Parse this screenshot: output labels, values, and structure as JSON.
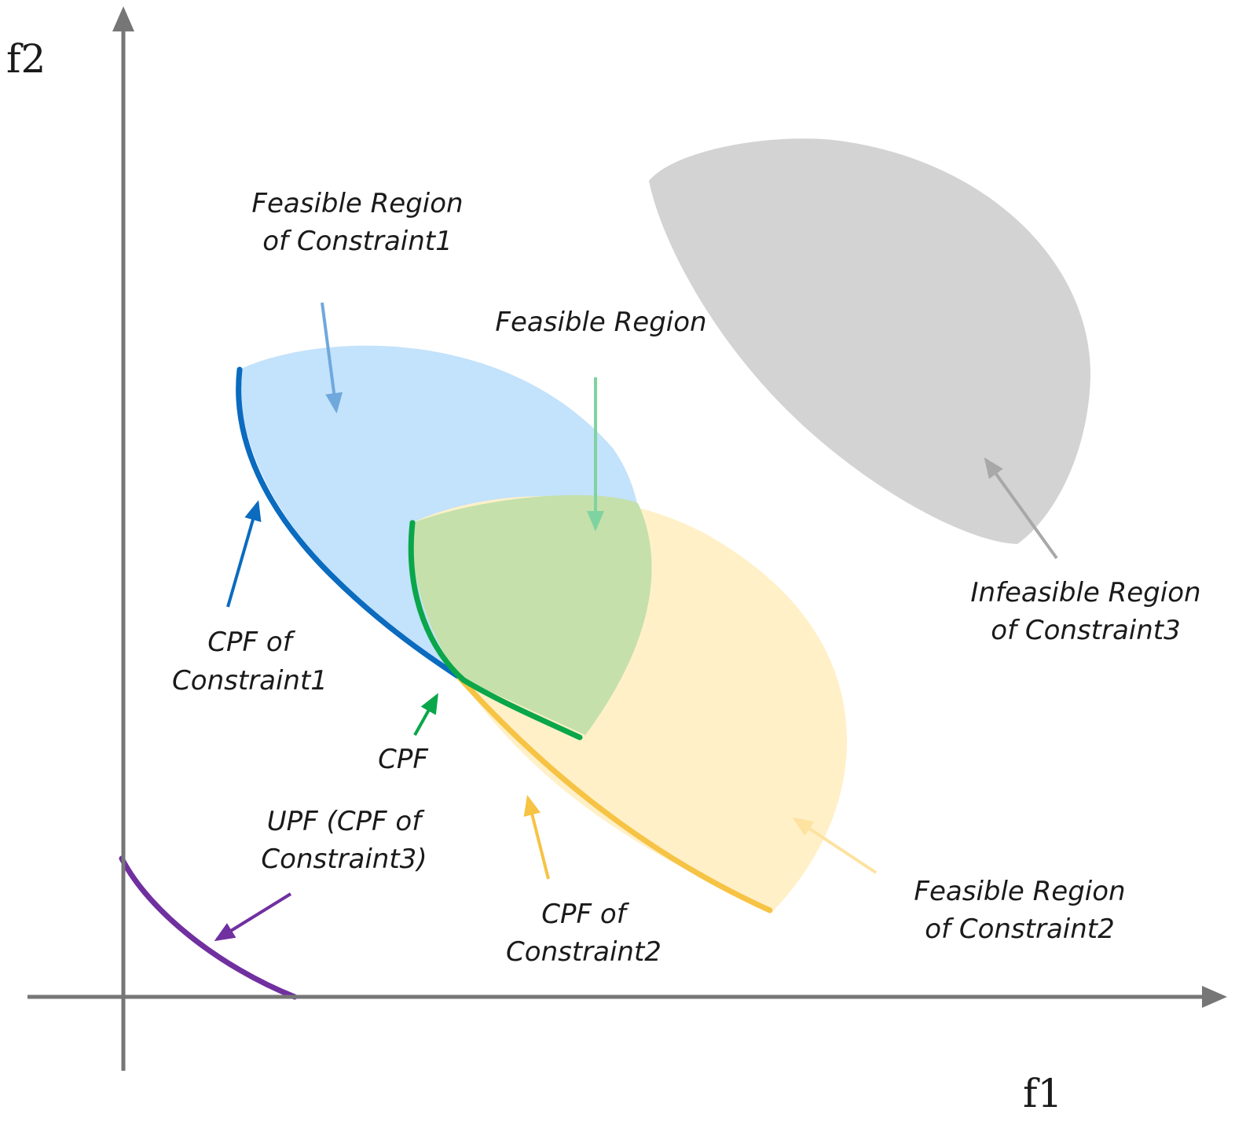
{
  "axes": {
    "x_label": "f1",
    "y_label": "f2"
  },
  "labels": {
    "feasible_c1": [
      "Feasible Region",
      "of Constraint1"
    ],
    "feasible": [
      "Feasible Region"
    ],
    "infeasible_c3": [
      "Infeasible Region",
      "of Constraint3"
    ],
    "cpf_c1": [
      "CPF of",
      "Constraint1"
    ],
    "cpf": [
      "CPF"
    ],
    "upf": [
      "UPF (CPF of",
      "Constraint3)"
    ],
    "cpf_c2": [
      "CPF of",
      "Constraint2"
    ],
    "feasible_c2": [
      "Feasible Region",
      "of Constraint2"
    ]
  },
  "colors": {
    "axis": "#767676",
    "constraint1_region": "#c3e2fb",
    "constraint2_region": "#fff0c8",
    "feasible_region": "#c5e0ab",
    "infeasible_region": "#d3d3d3",
    "cpf_constraint1": "#0a6bbf",
    "cpf_constraint2": "#f6c344",
    "cpf": "#0aa64a",
    "upf": "#7030a0"
  }
}
